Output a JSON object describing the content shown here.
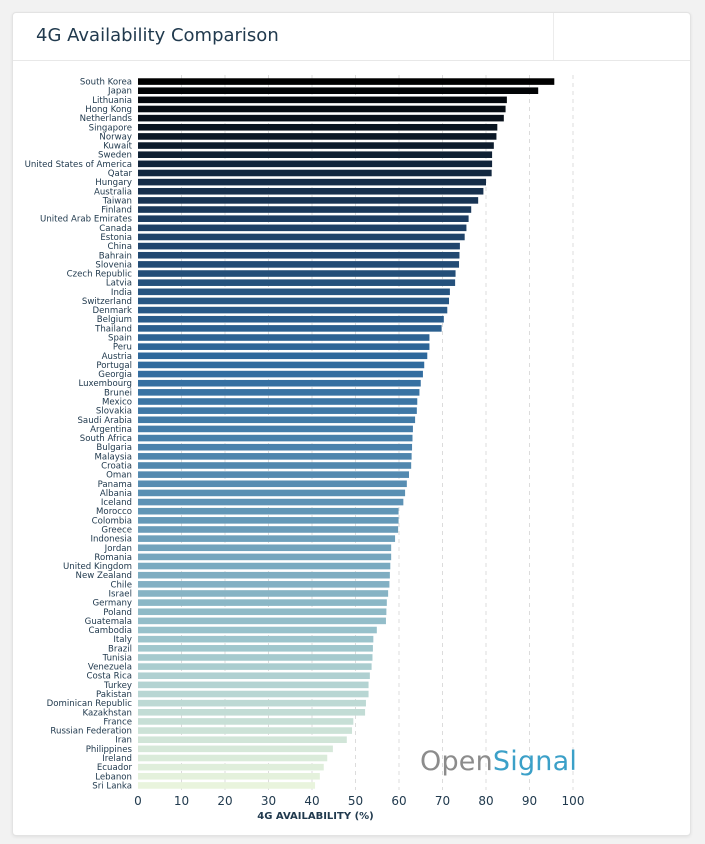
{
  "header": {
    "title": "4G Availability Comparison"
  },
  "brand": {
    "part1": "Open",
    "part2": "Signal"
  },
  "chart_data": {
    "type": "bar",
    "orientation": "horizontal",
    "title": "4G Availability Comparison",
    "xlabel": "4G AVAILABILITY (%)",
    "ylabel": "",
    "xlim": [
      0,
      100
    ],
    "xticks": [
      0,
      10,
      20,
      30,
      40,
      50,
      60,
      70,
      80,
      90,
      100
    ],
    "grid": "vertical-dashed",
    "color_gradient": [
      "#000000",
      "#1d3e63",
      "#2f6a9e",
      "#5e93b5",
      "#9ec6cd",
      "#e9f4dd"
    ],
    "categories": [
      "South Korea",
      "Japan",
      "Lithuania",
      "Hong Kong",
      "Netherlands",
      "Singapore",
      "Norway",
      "Kuwait",
      "Sweden",
      "United States of America",
      "Qatar",
      "Hungary",
      "Australia",
      "Taiwan",
      "Finland",
      "United Arab Emirates",
      "Canada",
      "Estonia",
      "China",
      "Bahrain",
      "Slovenia",
      "Czech Republic",
      "Latvia",
      "India",
      "Switzerland",
      "Denmark",
      "Belgium",
      "Thailand",
      "Spain",
      "Peru",
      "Austria",
      "Portugal",
      "Georgia",
      "Luxembourg",
      "Brunei",
      "Mexico",
      "Slovakia",
      "Saudi Arabia",
      "Argentina",
      "South Africa",
      "Bulgaria",
      "Malaysia",
      "Croatia",
      "Oman",
      "Panama",
      "Albania",
      "Iceland",
      "Morocco",
      "Colombia",
      "Greece",
      "Indonesia",
      "Jordan",
      "Romania",
      "United Kingdom",
      "New Zealand",
      "Chile",
      "Israel",
      "Germany",
      "Poland",
      "Guatemala",
      "Cambodia",
      "Italy",
      "Brazil",
      "Tunisia",
      "Venezuela",
      "Costa Rica",
      "Turkey",
      "Pakistan",
      "Dominican Republic",
      "Kazakhstan",
      "France",
      "Russian Federation",
      "Iran",
      "Philippines",
      "Ireland",
      "Ecuador",
      "Lebanon",
      "Sri Lanka"
    ],
    "values": [
      95.7,
      92.0,
      84.8,
      84.5,
      84.1,
      82.6,
      82.4,
      81.8,
      81.4,
      81.4,
      81.3,
      80.0,
      79.4,
      78.2,
      76.6,
      76.0,
      75.5,
      75.1,
      74.0,
      73.9,
      73.8,
      73.0,
      72.9,
      71.7,
      71.5,
      71.1,
      70.3,
      69.8,
      67.0,
      67.0,
      66.5,
      65.8,
      65.5,
      65.0,
      64.7,
      64.2,
      64.1,
      63.7,
      63.2,
      63.1,
      63.0,
      62.9,
      62.8,
      62.3,
      61.8,
      61.4,
      61.0,
      59.9,
      59.9,
      59.8,
      59.1,
      58.2,
      58.2,
      58.0,
      57.9,
      57.8,
      57.5,
      57.2,
      57.1,
      57.0,
      54.9,
      54.1,
      54.0,
      53.9,
      53.7,
      53.3,
      53.0,
      53.0,
      52.4,
      52.2,
      49.5,
      49.2,
      48.0,
      44.8,
      43.5,
      42.7,
      41.8,
      40.7
    ]
  }
}
